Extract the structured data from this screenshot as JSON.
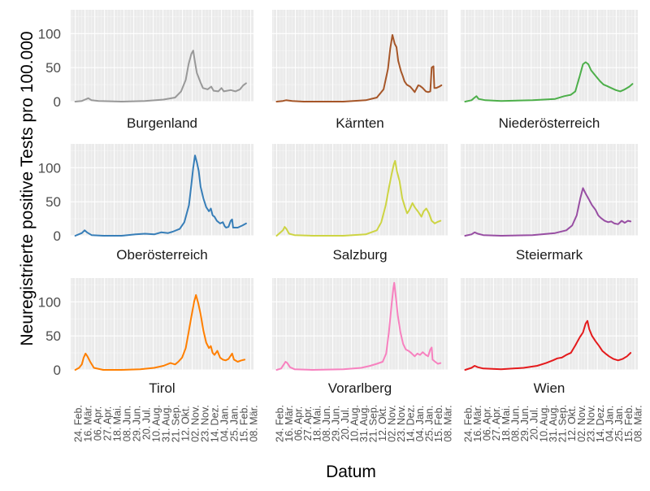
{
  "chart_data": {
    "type": "line",
    "ylabel": "Neuregistrierte positive Tests pro 100.000",
    "xlabel": "Datum",
    "ylim": [
      0,
      135
    ],
    "yticks": [
      "0",
      "50",
      "100"
    ],
    "ytick_values": [
      0,
      50,
      100
    ],
    "x_ticks": [
      "24. Feb.",
      "16. Mär.",
      "06. Apr.",
      "27. Apr.",
      "18. Mai.",
      "08. Jun.",
      "29. Jun.",
      "20. Jul.",
      "10. Aug.",
      "31. Aug.",
      "21. Sep.",
      "12. Okt.",
      "02. Nov.",
      "23. Nov.",
      "14. Dez.",
      "04. Jan.",
      "25. Jan.",
      "15. Feb.",
      "08. Mär."
    ],
    "x_tick_days": [
      0,
      21,
      42,
      63,
      84,
      105,
      126,
      147,
      168,
      189,
      210,
      231,
      252,
      273,
      294,
      315,
      336,
      357,
      378
    ],
    "xlim_days": [
      -10,
      384
    ],
    "series": [
      {
        "name": "Burgenland",
        "color": "#999999",
        "points": [
          [
            0,
            0
          ],
          [
            14,
            1
          ],
          [
            21,
            3
          ],
          [
            28,
            5
          ],
          [
            35,
            2
          ],
          [
            50,
            1
          ],
          [
            100,
            0
          ],
          [
            150,
            1
          ],
          [
            190,
            3
          ],
          [
            215,
            6
          ],
          [
            228,
            15
          ],
          [
            238,
            32
          ],
          [
            244,
            55
          ],
          [
            250,
            70
          ],
          [
            254,
            75
          ],
          [
            258,
            58
          ],
          [
            262,
            42
          ],
          [
            270,
            28
          ],
          [
            275,
            20
          ],
          [
            285,
            18
          ],
          [
            293,
            22
          ],
          [
            298,
            16
          ],
          [
            308,
            15
          ],
          [
            315,
            20
          ],
          [
            320,
            15
          ],
          [
            335,
            17
          ],
          [
            345,
            15
          ],
          [
            355,
            18
          ],
          [
            362,
            24
          ],
          [
            368,
            27
          ]
        ]
      },
      {
        "name": "Kärnten",
        "color": "#A65628",
        "points": [
          [
            0,
            0
          ],
          [
            14,
            1
          ],
          [
            21,
            2
          ],
          [
            35,
            1
          ],
          [
            60,
            0
          ],
          [
            150,
            0
          ],
          [
            200,
            2
          ],
          [
            225,
            6
          ],
          [
            240,
            18
          ],
          [
            250,
            48
          ],
          [
            255,
            78
          ],
          [
            260,
            98
          ],
          [
            265,
            85
          ],
          [
            269,
            80
          ],
          [
            273,
            60
          ],
          [
            279,
            45
          ],
          [
            283,
            38
          ],
          [
            287,
            30
          ],
          [
            292,
            25
          ],
          [
            300,
            22
          ],
          [
            305,
            18
          ],
          [
            310,
            14
          ],
          [
            318,
            24
          ],
          [
            322,
            23
          ],
          [
            328,
            20
          ],
          [
            335,
            15
          ],
          [
            340,
            14
          ],
          [
            345,
            15
          ],
          [
            348,
            50
          ],
          [
            352,
            52
          ],
          [
            354,
            20
          ],
          [
            358,
            20
          ],
          [
            365,
            22
          ],
          [
            370,
            24
          ]
        ]
      },
      {
        "name": "Niederösterreich",
        "color": "#4DAF4A",
        "points": [
          [
            0,
            0
          ],
          [
            14,
            2
          ],
          [
            21,
            6
          ],
          [
            25,
            8
          ],
          [
            30,
            4
          ],
          [
            45,
            2
          ],
          [
            80,
            1
          ],
          [
            150,
            2
          ],
          [
            200,
            4
          ],
          [
            220,
            8
          ],
          [
            235,
            10
          ],
          [
            245,
            15
          ],
          [
            255,
            38
          ],
          [
            262,
            55
          ],
          [
            268,
            58
          ],
          [
            274,
            55
          ],
          [
            280,
            46
          ],
          [
            290,
            38
          ],
          [
            300,
            30
          ],
          [
            308,
            25
          ],
          [
            315,
            23
          ],
          [
            325,
            20
          ],
          [
            335,
            17
          ],
          [
            345,
            15
          ],
          [
            355,
            18
          ],
          [
            365,
            22
          ],
          [
            372,
            26
          ]
        ]
      },
      {
        "name": "Oberösterreich",
        "color": "#377EB8",
        "points": [
          [
            0,
            0
          ],
          [
            14,
            4
          ],
          [
            20,
            8
          ],
          [
            25,
            5
          ],
          [
            35,
            1
          ],
          [
            60,
            0
          ],
          [
            100,
            0
          ],
          [
            130,
            2
          ],
          [
            150,
            3
          ],
          [
            170,
            2
          ],
          [
            185,
            5
          ],
          [
            200,
            4
          ],
          [
            210,
            6
          ],
          [
            225,
            10
          ],
          [
            235,
            20
          ],
          [
            245,
            45
          ],
          [
            250,
            75
          ],
          [
            254,
            100
          ],
          [
            258,
            118
          ],
          [
            262,
            108
          ],
          [
            266,
            95
          ],
          [
            270,
            72
          ],
          [
            276,
            55
          ],
          [
            282,
            42
          ],
          [
            288,
            36
          ],
          [
            292,
            40
          ],
          [
            296,
            30
          ],
          [
            300,
            28
          ],
          [
            305,
            22
          ],
          [
            312,
            18
          ],
          [
            318,
            20
          ],
          [
            322,
            14
          ],
          [
            325,
            12
          ],
          [
            330,
            13
          ],
          [
            335,
            22
          ],
          [
            338,
            24
          ],
          [
            340,
            12
          ],
          [
            350,
            12
          ],
          [
            360,
            15
          ],
          [
            368,
            18
          ]
        ]
      },
      {
        "name": "Salzburg",
        "color": "#CDD443",
        "points": [
          [
            0,
            0
          ],
          [
            14,
            8
          ],
          [
            18,
            13
          ],
          [
            22,
            10
          ],
          [
            28,
            3
          ],
          [
            40,
            1
          ],
          [
            80,
            0
          ],
          [
            150,
            0
          ],
          [
            200,
            2
          ],
          [
            225,
            8
          ],
          [
            235,
            20
          ],
          [
            245,
            45
          ],
          [
            252,
            70
          ],
          [
            258,
            90
          ],
          [
            263,
            105
          ],
          [
            266,
            110
          ],
          [
            270,
            95
          ],
          [
            276,
            80
          ],
          [
            282,
            55
          ],
          [
            288,
            42
          ],
          [
            293,
            33
          ],
          [
            298,
            38
          ],
          [
            305,
            48
          ],
          [
            310,
            42
          ],
          [
            318,
            35
          ],
          [
            325,
            28
          ],
          [
            330,
            36
          ],
          [
            336,
            40
          ],
          [
            342,
            33
          ],
          [
            348,
            22
          ],
          [
            355,
            18
          ],
          [
            360,
            20
          ],
          [
            368,
            22
          ]
        ]
      },
      {
        "name": "Steiermark",
        "color": "#984EA3",
        "points": [
          [
            0,
            0
          ],
          [
            14,
            2
          ],
          [
            21,
            5
          ],
          [
            28,
            3
          ],
          [
            40,
            1
          ],
          [
            80,
            0
          ],
          [
            150,
            1
          ],
          [
            200,
            4
          ],
          [
            225,
            8
          ],
          [
            238,
            15
          ],
          [
            248,
            30
          ],
          [
            256,
            55
          ],
          [
            262,
            70
          ],
          [
            268,
            62
          ],
          [
            274,
            55
          ],
          [
            282,
            45
          ],
          [
            290,
            38
          ],
          [
            296,
            30
          ],
          [
            302,
            26
          ],
          [
            310,
            22
          ],
          [
            318,
            20
          ],
          [
            325,
            21
          ],
          [
            332,
            18
          ],
          [
            340,
            17
          ],
          [
            348,
            22
          ],
          [
            355,
            19
          ],
          [
            362,
            22
          ],
          [
            368,
            21
          ]
        ]
      },
      {
        "name": "Tirol",
        "color": "#FF7F00",
        "points": [
          [
            0,
            0
          ],
          [
            8,
            3
          ],
          [
            14,
            8
          ],
          [
            18,
            18
          ],
          [
            22,
            24
          ],
          [
            26,
            20
          ],
          [
            32,
            12
          ],
          [
            40,
            3
          ],
          [
            60,
            0
          ],
          [
            100,
            0
          ],
          [
            140,
            1
          ],
          [
            170,
            3
          ],
          [
            190,
            6
          ],
          [
            205,
            10
          ],
          [
            215,
            8
          ],
          [
            222,
            12
          ],
          [
            230,
            18
          ],
          [
            238,
            32
          ],
          [
            244,
            55
          ],
          [
            250,
            78
          ],
          [
            256,
            100
          ],
          [
            260,
            110
          ],
          [
            265,
            98
          ],
          [
            270,
            82
          ],
          [
            276,
            58
          ],
          [
            282,
            40
          ],
          [
            288,
            32
          ],
          [
            292,
            35
          ],
          [
            296,
            25
          ],
          [
            300,
            22
          ],
          [
            306,
            28
          ],
          [
            312,
            18
          ],
          [
            318,
            15
          ],
          [
            324,
            14
          ],
          [
            330,
            16
          ],
          [
            336,
            22
          ],
          [
            338,
            24
          ],
          [
            342,
            15
          ],
          [
            350,
            12
          ],
          [
            358,
            14
          ],
          [
            365,
            15
          ]
        ]
      },
      {
        "name": "Vorarlberg",
        "color": "#F781BF",
        "points": [
          [
            0,
            0
          ],
          [
            10,
            2
          ],
          [
            16,
            8
          ],
          [
            20,
            12
          ],
          [
            24,
            10
          ],
          [
            30,
            4
          ],
          [
            40,
            1
          ],
          [
            80,
            0
          ],
          [
            150,
            1
          ],
          [
            190,
            3
          ],
          [
            210,
            6
          ],
          [
            225,
            9
          ],
          [
            238,
            12
          ],
          [
            246,
            24
          ],
          [
            252,
            55
          ],
          [
            258,
            95
          ],
          [
            262,
            120
          ],
          [
            264,
            128
          ],
          [
            268,
            105
          ],
          [
            272,
            80
          ],
          [
            278,
            55
          ],
          [
            284,
            38
          ],
          [
            290,
            30
          ],
          [
            296,
            28
          ],
          [
            302,
            25
          ],
          [
            310,
            20
          ],
          [
            316,
            24
          ],
          [
            322,
            22
          ],
          [
            328,
            26
          ],
          [
            335,
            22
          ],
          [
            340,
            20
          ],
          [
            345,
            30
          ],
          [
            348,
            33
          ],
          [
            350,
            15
          ],
          [
            356,
            12
          ],
          [
            362,
            9
          ],
          [
            368,
            10
          ]
        ]
      },
      {
        "name": "Wien",
        "color": "#E41A1C",
        "points": [
          [
            0,
            0
          ],
          [
            14,
            3
          ],
          [
            21,
            6
          ],
          [
            28,
            4
          ],
          [
            40,
            2
          ],
          [
            80,
            1
          ],
          [
            130,
            3
          ],
          [
            160,
            6
          ],
          [
            180,
            10
          ],
          [
            195,
            14
          ],
          [
            205,
            17
          ],
          [
            215,
            18
          ],
          [
            225,
            22
          ],
          [
            235,
            25
          ],
          [
            245,
            36
          ],
          [
            255,
            48
          ],
          [
            262,
            55
          ],
          [
            268,
            68
          ],
          [
            272,
            72
          ],
          [
            276,
            60
          ],
          [
            282,
            50
          ],
          [
            290,
            42
          ],
          [
            298,
            35
          ],
          [
            305,
            28
          ],
          [
            312,
            24
          ],
          [
            320,
            20
          ],
          [
            330,
            16
          ],
          [
            340,
            14
          ],
          [
            350,
            16
          ],
          [
            360,
            20
          ],
          [
            368,
            25
          ]
        ]
      }
    ]
  }
}
